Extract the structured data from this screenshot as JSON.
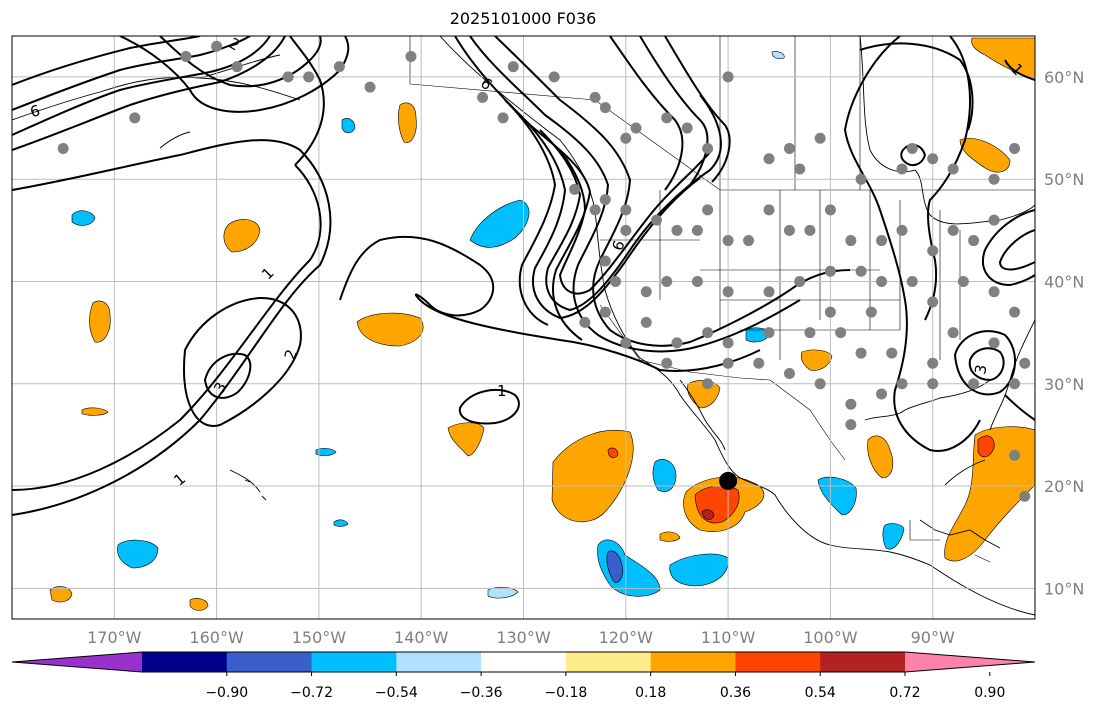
{
  "title": "2025101000 F036",
  "map": {
    "projection": "PlateCarree",
    "lon_range": [
      -180,
      -80
    ],
    "lat_range": [
      7,
      64
    ],
    "gridlines": true,
    "lon_ticks": [
      "170°W",
      "160°W",
      "150°W",
      "140°W",
      "130°W",
      "120°W",
      "110°W",
      "100°W",
      "90°W"
    ],
    "lat_ticks": [
      "10°N",
      "20°N",
      "30°N",
      "40°N",
      "50°N",
      "60°N"
    ],
    "contour_labels": [
      "1",
      "1",
      "1",
      "2",
      "3",
      "6",
      "6",
      "6",
      "2",
      "3",
      "1"
    ],
    "marker": {
      "lon": -110,
      "lat": 20.5,
      "color": "#000000"
    },
    "station_color": "#808080"
  },
  "colorbar": {
    "colors": [
      "#9932cc",
      "#00008b",
      "#3a5fcd",
      "#00bfff",
      "#b0e2ff",
      "#ffffff",
      "#ffec8b",
      "#ffa500",
      "#ff4500",
      "#b22222",
      "#ff82ab"
    ],
    "extend": "both",
    "tick_labels": [
      "−0.90",
      "−0.72",
      "−0.54",
      "−0.36",
      "−0.18",
      "0.18",
      "0.36",
      "0.54",
      "0.72",
      "0.90"
    ]
  }
}
